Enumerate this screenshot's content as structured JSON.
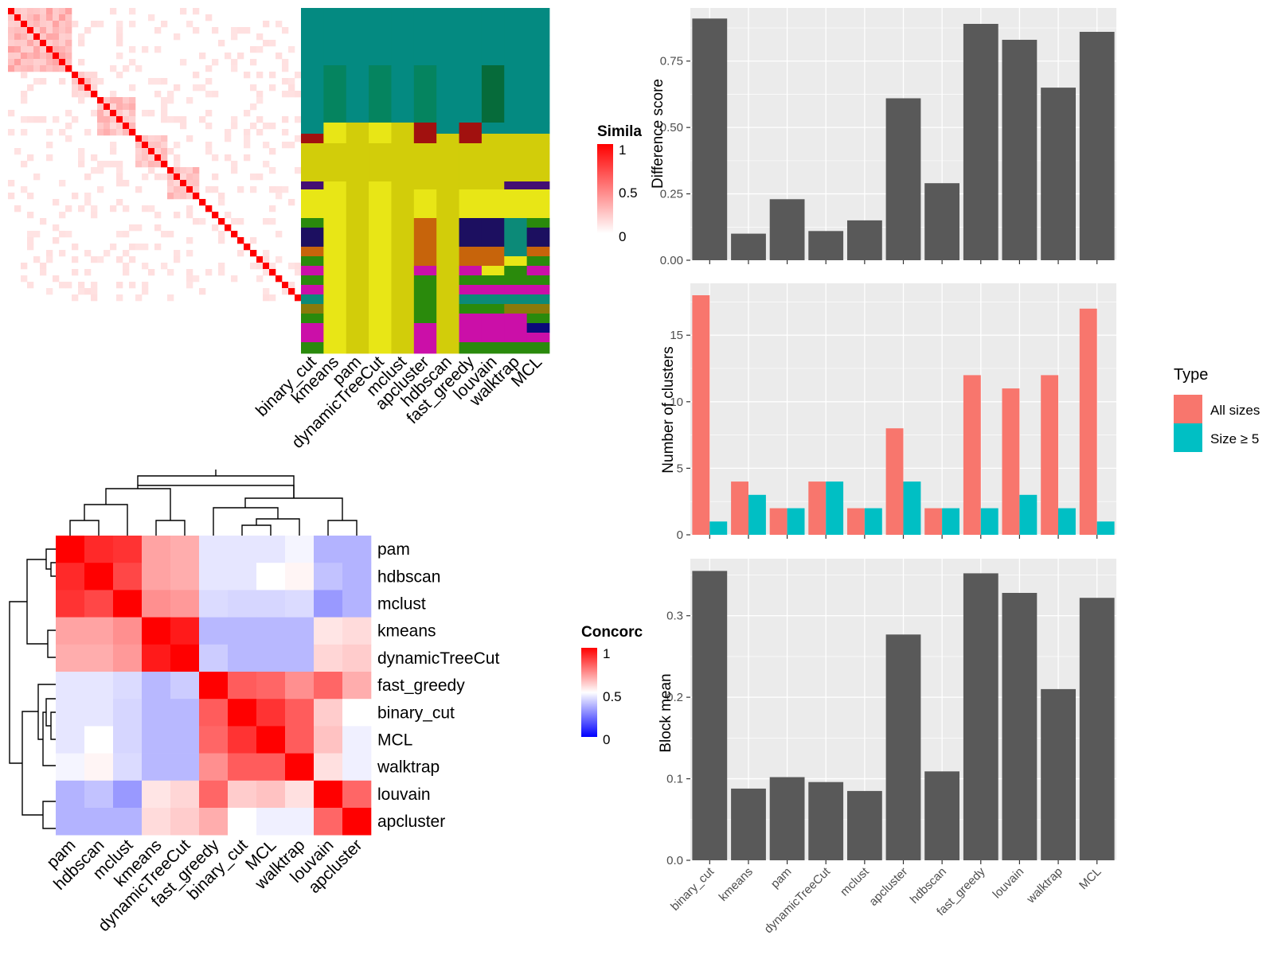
{
  "methods": [
    "binary_cut",
    "kmeans",
    "pam",
    "dynamicTreeCut",
    "mclust",
    "apcluster",
    "hdbscan",
    "fast_greedy",
    "louvain",
    "walktrap",
    "MCL"
  ],
  "legend_similarity": {
    "title": "Simila",
    "ticks": [
      "1",
      "0.5",
      "0"
    ]
  },
  "legend_concordance": {
    "title": "Concorc",
    "ticks": [
      "1",
      "0.5",
      "0"
    ]
  },
  "legend_type": {
    "title": "Type",
    "items": [
      "All sizes",
      "Size ≥ 5"
    ]
  },
  "colors": {
    "panel_bg": "#ebebeb",
    "bar": "#595959",
    "all_sizes": "#f8766d",
    "size5": "#00bfc4"
  },
  "chart_data": [
    {
      "type": "heatmap",
      "id": "similarity-matrix",
      "description_in_image": "gene similarity heatmap, red diagonal",
      "value_range": [
        0,
        1
      ]
    },
    {
      "type": "heatmap",
      "id": "cluster-membership",
      "columns": [
        "binary_cut",
        "kmeans",
        "pam",
        "dynamicTreeCut",
        "mclust",
        "apcluster",
        "hdbscan",
        "fast_greedy",
        "louvain",
        "walktrap",
        "MCL"
      ]
    },
    {
      "type": "heatmap",
      "id": "concordance",
      "rows": [
        "pam",
        "hdbscan",
        "mclust",
        "kmeans",
        "dynamicTreeCut",
        "fast_greedy",
        "binary_cut",
        "MCL",
        "walktrap",
        "louvain",
        "apcluster"
      ],
      "columns": [
        "pam",
        "hdbscan",
        "mclust",
        "kmeans",
        "dynamicTreeCut",
        "fast_greedy",
        "binary_cut",
        "MCL",
        "walktrap",
        "louvain",
        "apcluster"
      ],
      "values": [
        [
          1.0,
          0.92,
          0.9,
          0.68,
          0.66,
          0.45,
          0.45,
          0.45,
          0.48,
          0.35,
          0.35
        ],
        [
          0.92,
          1.0,
          0.86,
          0.68,
          0.66,
          0.45,
          0.45,
          0.5,
          0.52,
          0.38,
          0.35
        ],
        [
          0.9,
          0.86,
          1.0,
          0.72,
          0.7,
          0.43,
          0.42,
          0.42,
          0.43,
          0.3,
          0.35
        ],
        [
          0.68,
          0.68,
          0.72,
          1.0,
          0.95,
          0.36,
          0.36,
          0.36,
          0.36,
          0.55,
          0.57
        ],
        [
          0.66,
          0.66,
          0.7,
          0.95,
          1.0,
          0.4,
          0.36,
          0.36,
          0.36,
          0.58,
          0.6
        ],
        [
          0.45,
          0.45,
          0.43,
          0.36,
          0.4,
          1.0,
          0.82,
          0.8,
          0.72,
          0.8,
          0.66
        ],
        [
          0.45,
          0.45,
          0.42,
          0.36,
          0.36,
          0.82,
          1.0,
          0.9,
          0.82,
          0.6,
          0.5
        ],
        [
          0.45,
          0.5,
          0.42,
          0.36,
          0.36,
          0.8,
          0.9,
          1.0,
          0.82,
          0.62,
          0.47
        ],
        [
          0.48,
          0.52,
          0.43,
          0.36,
          0.36,
          0.72,
          0.82,
          0.82,
          1.0,
          0.56,
          0.47
        ],
        [
          0.35,
          0.38,
          0.3,
          0.55,
          0.58,
          0.8,
          0.6,
          0.62,
          0.56,
          1.0,
          0.8
        ],
        [
          0.35,
          0.35,
          0.35,
          0.57,
          0.6,
          0.66,
          0.5,
          0.47,
          0.47,
          0.8,
          1.0
        ]
      ],
      "value_range": [
        0,
        1
      ]
    },
    {
      "type": "bar",
      "id": "difference-score",
      "categories": [
        "binary_cut",
        "kmeans",
        "pam",
        "dynamicTreeCut",
        "mclust",
        "apcluster",
        "hdbscan",
        "fast_greedy",
        "louvain",
        "walktrap",
        "MCL"
      ],
      "values": [
        0.91,
        0.1,
        0.23,
        0.11,
        0.15,
        0.61,
        0.29,
        0.89,
        0.83,
        0.65,
        0.86
      ],
      "ylabel": "Difference score",
      "ylim": [
        0,
        0.95
      ],
      "yticks": [
        "0.00",
        "0.25",
        "0.50",
        "0.75"
      ]
    },
    {
      "type": "bar",
      "id": "number-of-clusters",
      "categories": [
        "binary_cut",
        "kmeans",
        "pam",
        "dynamicTreeCut",
        "mclust",
        "apcluster",
        "hdbscan",
        "fast_greedy",
        "louvain",
        "walktrap",
        "MCL"
      ],
      "series": [
        {
          "name": "All sizes",
          "values": [
            18,
            4,
            2,
            4,
            2,
            8,
            2,
            12,
            11,
            12,
            17
          ]
        },
        {
          "name": "Size ≥ 5",
          "values": [
            1,
            3,
            2,
            4,
            2,
            4,
            2,
            2,
            3,
            2,
            1
          ]
        }
      ],
      "ylabel": "Number of clusters",
      "ylim": [
        0,
        18.9
      ],
      "yticks": [
        "0",
        "5",
        "10",
        "15"
      ]
    },
    {
      "type": "bar",
      "id": "block-mean",
      "categories": [
        "binary_cut",
        "kmeans",
        "pam",
        "dynamicTreeCut",
        "mclust",
        "apcluster",
        "hdbscan",
        "fast_greedy",
        "louvain",
        "walktrap",
        "MCL"
      ],
      "values": [
        0.355,
        0.088,
        0.102,
        0.096,
        0.085,
        0.277,
        0.109,
        0.352,
        0.328,
        0.21,
        0.322
      ],
      "ylabel": "Block mean",
      "ylim": [
        0,
        0.37
      ],
      "yticks": [
        "0.0",
        "0.1",
        "0.2",
        "0.3"
      ]
    }
  ]
}
